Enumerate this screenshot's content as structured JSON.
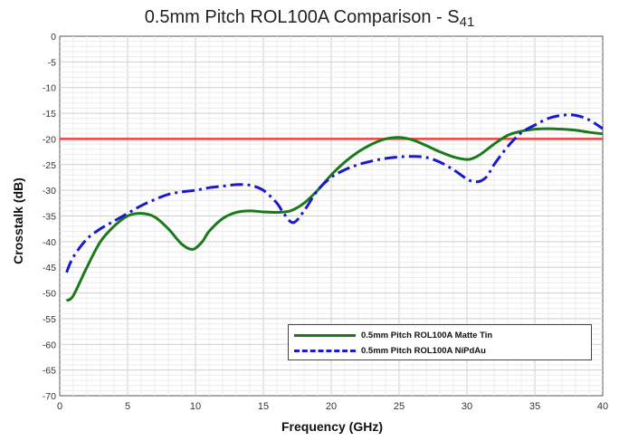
{
  "chart_data": {
    "type": "line",
    "title_main": "0.5mm Pitch ROL100A Comparison - S",
    "title_sub": "41",
    "xlabel": "Frequency (GHz)",
    "ylabel": "Crosstalk (dB)",
    "xlim": [
      0,
      40
    ],
    "ylim": [
      -70,
      0
    ],
    "x_ticks": [
      0,
      5,
      10,
      15,
      20,
      25,
      30,
      35,
      40
    ],
    "y_ticks": [
      0,
      -5,
      -10,
      -15,
      -20,
      -25,
      -30,
      -35,
      -40,
      -45,
      -50,
      -55,
      -60,
      -65,
      -70
    ],
    "grid": true,
    "legend_position": "bottom-right",
    "reference_line": {
      "y": -20,
      "color": "#f04040"
    },
    "series": [
      {
        "name": "0.5mm Pitch ROL100A Matte Tin",
        "color": "#1a7a1a",
        "style": "solid",
        "x": [
          0.5,
          1,
          2,
          3,
          4,
          5,
          6,
          7,
          8,
          9,
          9.8,
          10.5,
          11,
          12,
          13,
          14,
          15,
          16,
          17,
          18,
          19,
          20,
          21,
          22,
          23,
          24,
          25,
          26,
          27,
          28,
          29,
          30,
          30.5,
          31,
          32,
          33,
          34,
          35,
          36,
          37,
          38,
          39,
          40
        ],
        "values": [
          -51.5,
          -50.5,
          -45,
          -40,
          -37,
          -35,
          -34.5,
          -35.2,
          -37.5,
          -40.5,
          -41.5,
          -40,
          -38,
          -35.5,
          -34.3,
          -34,
          -34.2,
          -34.3,
          -34,
          -32.5,
          -30,
          -27,
          -24.5,
          -22.5,
          -21,
          -20,
          -19.7,
          -20.2,
          -21.3,
          -22.5,
          -23.5,
          -24,
          -23.7,
          -23,
          -21,
          -19.3,
          -18.5,
          -18.1,
          -18,
          -18.1,
          -18.3,
          -18.7,
          -19
        ]
      },
      {
        "name": "0.5mm Pitch ROL100A NiPdAu",
        "color": "#1a1acc",
        "style": "dashdot",
        "x": [
          0.5,
          1,
          2,
          3,
          4,
          5,
          6,
          7,
          8,
          9,
          10,
          11,
          12,
          13,
          14,
          15,
          16,
          16.5,
          17.2,
          18,
          19,
          20,
          21,
          22,
          23,
          24,
          25,
          26,
          27,
          28,
          29,
          30,
          30.5,
          31,
          31.5,
          32,
          33,
          34,
          35,
          36,
          37,
          38,
          39,
          40
        ],
        "values": [
          -46,
          -43,
          -39.5,
          -37.5,
          -36,
          -34.5,
          -33,
          -31.8,
          -30.8,
          -30.3,
          -30,
          -29.5,
          -29.2,
          -28.9,
          -29,
          -30,
          -32.5,
          -34.5,
          -36.3,
          -34,
          -30,
          -27.5,
          -26,
          -25,
          -24.3,
          -23.8,
          -23.5,
          -23.4,
          -23.6,
          -24.5,
          -26,
          -27.8,
          -28.3,
          -28.2,
          -27.2,
          -25,
          -21.5,
          -18.8,
          -17.3,
          -16,
          -15.4,
          -15.4,
          -16.3,
          -18
        ]
      }
    ]
  }
}
